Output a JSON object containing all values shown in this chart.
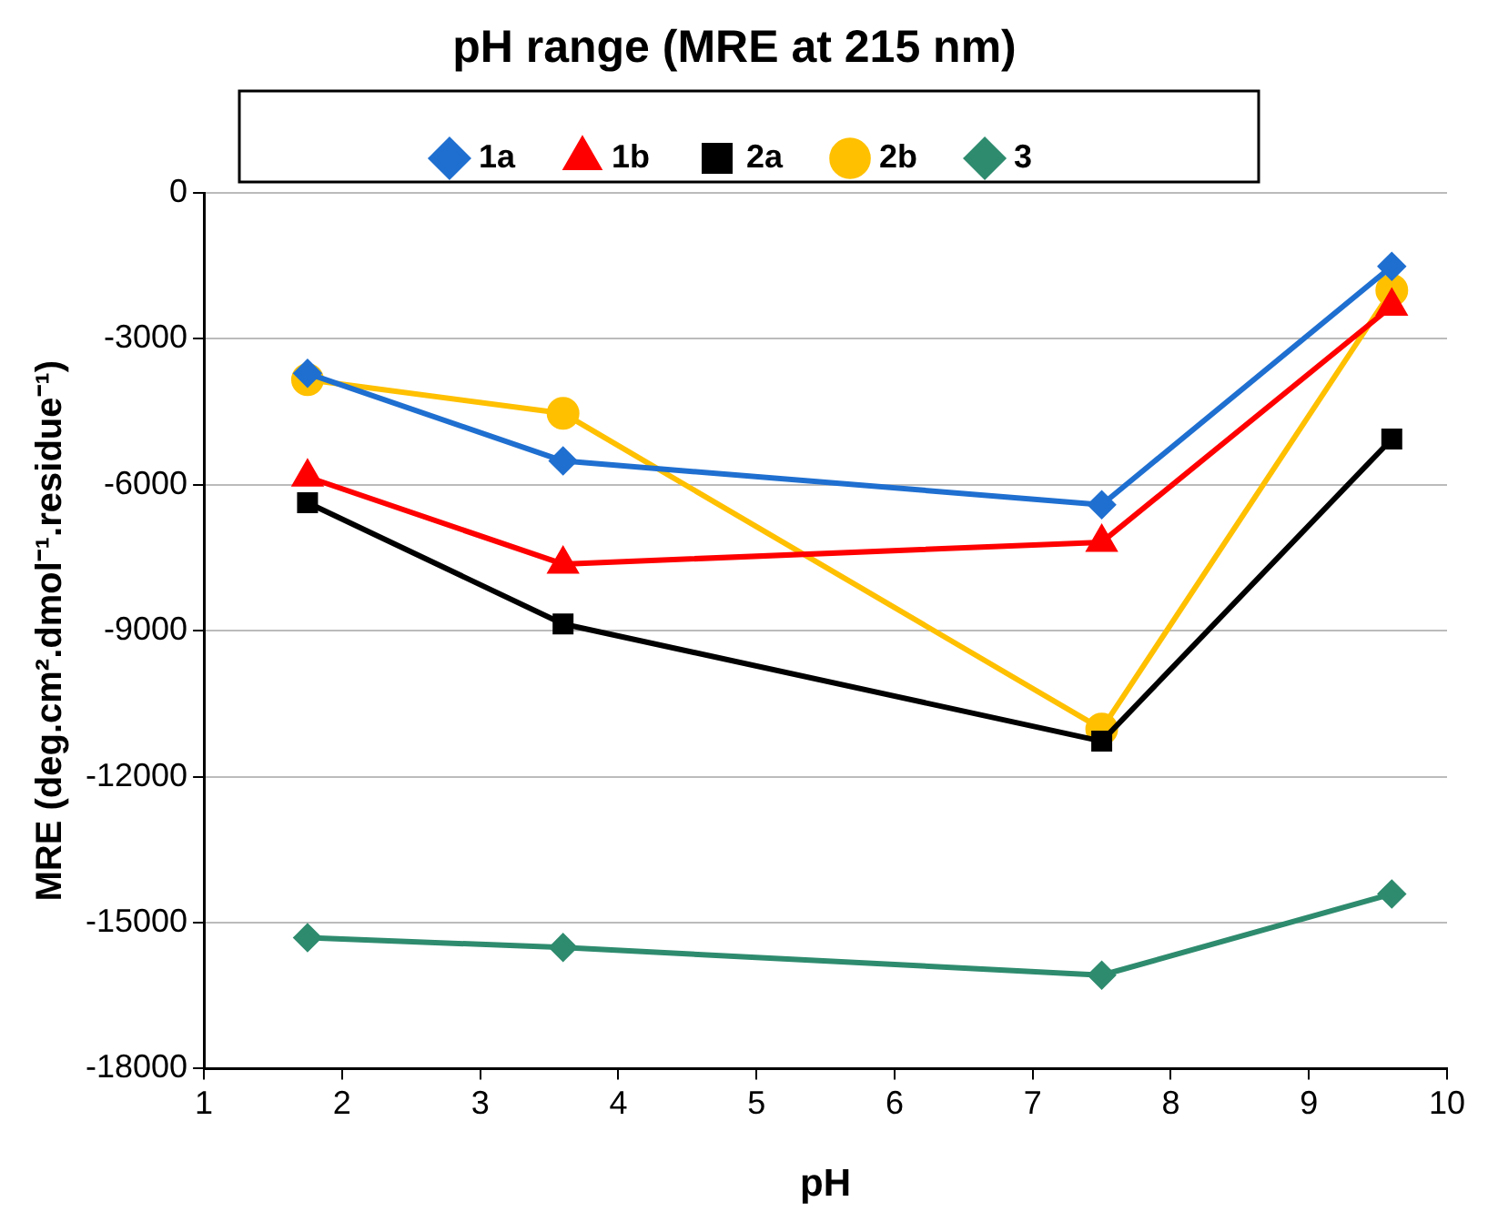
{
  "chart_data": {
    "type": "line",
    "title": "pH range (MRE at 215 nm)",
    "xlabel": "pH",
    "ylabel": "MRE (deg.cm².dmol⁻¹.residue⁻¹)",
    "x": [
      1.75,
      3.6,
      7.5,
      9.6
    ],
    "series": [
      {
        "name": "1a",
        "color": "#1f6fd0",
        "marker": "diamond",
        "values": [
          -3710,
          -5510,
          -6410,
          -1510
        ]
      },
      {
        "name": "1b",
        "color": "#ff0000",
        "marker": "triangle",
        "values": [
          -5840,
          -7630,
          -7180,
          -2330
        ]
      },
      {
        "name": "2a",
        "color": "#000000",
        "marker": "square",
        "values": [
          -6370,
          -8860,
          -11270,
          -5060
        ]
      },
      {
        "name": "2b",
        "color": "#ffc000",
        "marker": "circle",
        "values": [
          -3840,
          -4530,
          -11020,
          -2000
        ]
      },
      {
        "name": "3",
        "color": "#2e8b6e",
        "marker": "diamond",
        "values": [
          -15310,
          -15510,
          -16080,
          -14410
        ]
      }
    ],
    "xlim": [
      1,
      10
    ],
    "xticks": [
      1,
      2,
      3,
      4,
      5,
      6,
      7,
      8,
      9,
      10
    ],
    "ylim": [
      -18000,
      0
    ],
    "yticks": [
      -18000,
      -15000,
      -12000,
      -9000,
      -6000,
      -3000,
      0
    ],
    "grid": "y",
    "legend": "top",
    "line_style": "solid"
  }
}
